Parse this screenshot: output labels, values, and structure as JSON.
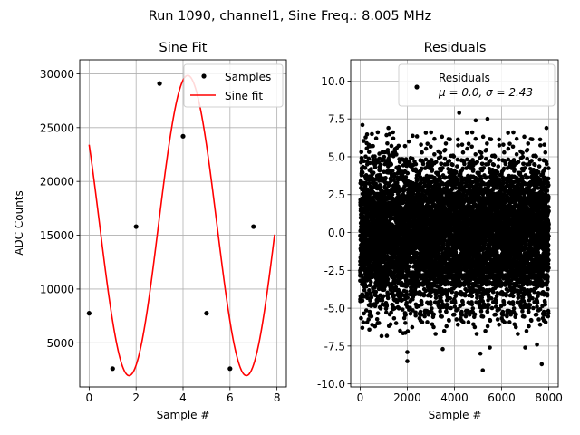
{
  "suptitle": "Run 1090, channel1, Sine Freq.: 8.005 MHz",
  "chart_data": [
    {
      "type": "line",
      "title": "Sine Fit",
      "xlabel": "Sample #",
      "ylabel": "ADC Counts",
      "xlim": [
        -0.4,
        8.4
      ],
      "ylim": [
        900,
        31300
      ],
      "grid": true,
      "xticks": [
        0,
        2,
        4,
        6,
        8
      ],
      "yticks": [
        5000,
        10000,
        15000,
        20000,
        25000,
        30000
      ],
      "legend": {
        "position": "top-right",
        "entries": [
          "Samples",
          "Sine fit"
        ]
      },
      "series": [
        {
          "name": "Samples",
          "style": "markers",
          "color": "#000000",
          "x": [
            0,
            1,
            2,
            3,
            4,
            5,
            6,
            7
          ],
          "y": [
            7750,
            2600,
            15800,
            29100,
            24200,
            7750,
            2600,
            15800
          ]
        },
        {
          "name": "Sine fit",
          "style": "line",
          "color": "#ff0000",
          "model": {
            "function": "offset + amplitude*sin(2*pi*x/period + phase)",
            "offset": 15900,
            "amplitude": 13950,
            "period": 4.997,
            "phase": 2.573,
            "x_range": [
              0,
              7.9
            ]
          }
        }
      ]
    },
    {
      "type": "scatter",
      "title": "Residuals",
      "xlabel": "Sample #",
      "ylabel": "",
      "xlim": [
        -400,
        8400
      ],
      "ylim": [
        -10.2,
        11.4
      ],
      "grid": true,
      "xticks": [
        0,
        2000,
        4000,
        6000,
        8000
      ],
      "yticks": [
        -10.0,
        -7.5,
        -5.0,
        -2.5,
        0.0,
        2.5,
        5.0,
        7.5,
        10.0
      ],
      "legend": {
        "position": "top-right",
        "entries": [
          "Residuals",
          "μ = 0.0, σ = 2.43"
        ]
      },
      "series": [
        {
          "name": "Residuals",
          "color": "#000000",
          "n_points": 8000,
          "mean": 0.0,
          "std": 2.43,
          "outliers": [
            [
              2000,
              -7.9
            ],
            [
              2000,
              -8.5
            ],
            [
              3500,
              -7.7
            ],
            [
              5200,
              -9.1
            ],
            [
              5100,
              -8.0
            ],
            [
              5500,
              -7.6
            ],
            [
              7000,
              -7.6
            ],
            [
              7500,
              -7.4
            ],
            [
              7700,
              -8.7
            ],
            [
              4200,
              7.9
            ],
            [
              5400,
              7.5
            ],
            [
              4900,
              7.4
            ],
            [
              1200,
              6.9
            ],
            [
              100,
              7.1
            ],
            [
              7900,
              6.9
            ],
            [
              500,
              6.5
            ]
          ]
        }
      ]
    }
  ]
}
